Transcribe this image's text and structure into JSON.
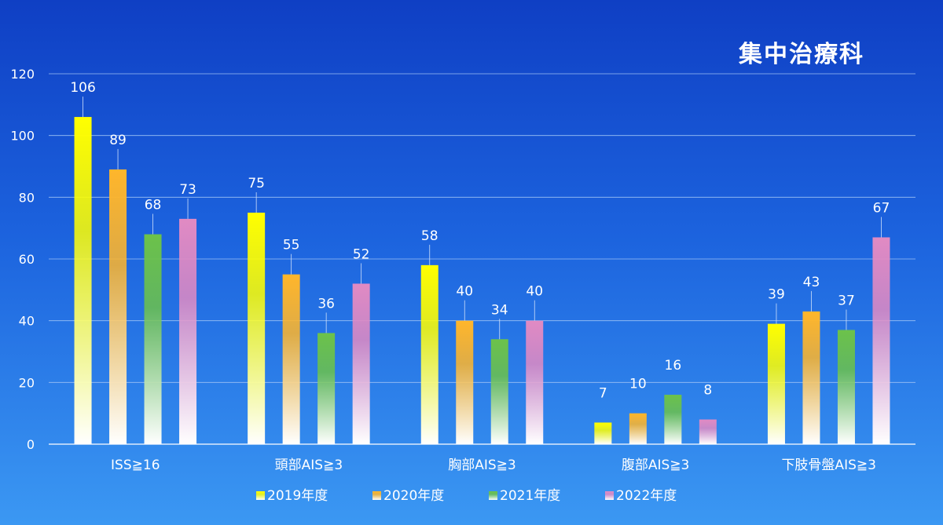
{
  "colors": {
    "background_top": "#0f3fc4",
    "background_bottom": "#3b98f3",
    "text": "#ffffff",
    "gridline": "#9cc1f5"
  },
  "chart_data": {
    "type": "bar",
    "title": "集中治療科",
    "xlabel": "",
    "ylabel": "",
    "ylim": [
      0,
      120
    ],
    "yticks": [
      0,
      20,
      40,
      60,
      80,
      100,
      120
    ],
    "grid": true,
    "legend_position": "bottom",
    "categories": [
      "ISS≧16",
      "頭部AIS≧3",
      "胸部AIS≧3",
      "腹部AIS≧3",
      "下肢骨盤AIS≧3"
    ],
    "series": [
      {
        "name": "2019年度",
        "color": "#ffff00",
        "values": [
          106,
          75,
          58,
          7,
          39
        ]
      },
      {
        "name": "2020年度",
        "color": "#ffb62b",
        "values": [
          89,
          55,
          40,
          10,
          43
        ]
      },
      {
        "name": "2021年度",
        "color": "#6cc24a",
        "values": [
          68,
          36,
          34,
          16,
          37
        ]
      },
      {
        "name": "2022年度",
        "color": "#e18ac3",
        "values": [
          73,
          52,
          40,
          8,
          67
        ]
      }
    ]
  }
}
